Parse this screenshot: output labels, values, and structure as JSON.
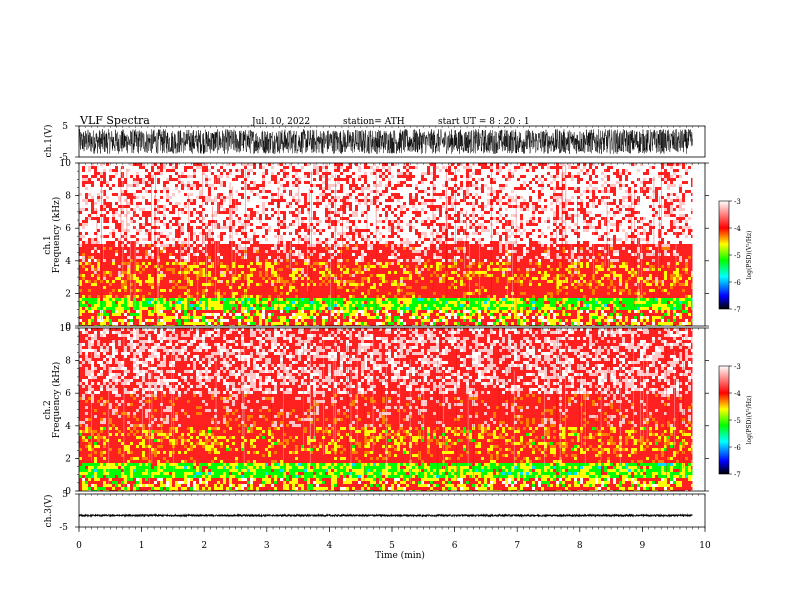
{
  "header": {
    "title": "VLF  Spectra",
    "date": "Jul.  10,  2022",
    "station": "station= ATH",
    "start": "start  UT  =    8  : 20 : 1"
  },
  "chart_data": [
    {
      "type": "line",
      "panel": "ch1-waveform",
      "ylabel": "ch.1(V)",
      "yticks": [
        "5",
        "-5"
      ],
      "ylim": [
        -5,
        5
      ],
      "xlim": [
        0,
        10
      ],
      "data_end_min": 9.8,
      "signal": "dense VLF waveform filling roughly -4 to +4 V over the whole record"
    },
    {
      "type": "heatmap",
      "panel": "ch1-spectrogram",
      "ylabel": "ch.1",
      "ylabel2": "Frequency  (kHz)",
      "yticks": [
        "10",
        "8",
        "6",
        "4",
        "2",
        "0"
      ],
      "ylim": [
        0,
        10
      ],
      "xlim": [
        0,
        10
      ],
      "data_end_min": 9.8,
      "bands": [
        {
          "fmin": 5.0,
          "fmax": 10.0,
          "level": "low (white/pink, log PSD about -3.5)"
        },
        {
          "fmin": 3.9,
          "fmax": 5.0,
          "level": "moderate (red, about -4)"
        },
        {
          "fmin": 2.4,
          "fmax": 3.9,
          "level": "high (red with yellow bursts, about -4.3)"
        },
        {
          "fmin": 1.8,
          "fmax": 2.4,
          "level": "moderate (red)"
        },
        {
          "fmin": 1.0,
          "fmax": 1.8,
          "level": "strong (green/yellow, about -5)"
        },
        {
          "fmin": 0.0,
          "fmax": 1.0,
          "level": "mixed (red/yellow with white lines)"
        }
      ]
    },
    {
      "type": "heatmap",
      "panel": "ch2-spectrogram",
      "ylabel": "ch.2",
      "ylabel2": "Frequency  (kHz)",
      "yticks": [
        "10",
        "8",
        "6",
        "4",
        "2",
        "0"
      ],
      "ylim": [
        0,
        10
      ],
      "xlim": [
        0,
        10
      ],
      "data_end_min": 9.8,
      "bands": [
        {
          "fmin": 6.0,
          "fmax": 10.0,
          "level": "low (pink/red mottled)"
        },
        {
          "fmin": 3.9,
          "fmax": 6.0,
          "level": "moderate (red)"
        },
        {
          "fmin": 2.2,
          "fmax": 3.9,
          "level": "high (red with yellow bursts)"
        },
        {
          "fmin": 1.8,
          "fmax": 2.2,
          "level": "moderate (red)"
        },
        {
          "fmin": 0.8,
          "fmax": 1.8,
          "level": "strong (green/yellow)"
        },
        {
          "fmin": 0.0,
          "fmax": 0.8,
          "level": "mixed (red/yellow)"
        }
      ]
    },
    {
      "type": "line",
      "panel": "ch3-waveform",
      "ylabel": "ch.3(V)",
      "yticks": [
        "5",
        "-5"
      ],
      "ylim": [
        -5,
        5
      ],
      "xlim": [
        0,
        10
      ],
      "data_end_min": 9.8,
      "signal": "nearly flat trace around -1.5 V"
    }
  ],
  "xaxis": {
    "label": "Time  (min)",
    "ticks": [
      "0",
      "1",
      "2",
      "3",
      "4",
      "5",
      "6",
      "7",
      "8",
      "9",
      "10"
    ]
  },
  "colorbar": {
    "label": "log(PSD)(V²/Hz)",
    "ticks": [
      "-3",
      "-4",
      "-5",
      "-6",
      "-7"
    ],
    "range": [
      -7,
      -3
    ],
    "stops": [
      "#000000",
      "#0000ff",
      "#00ffff",
      "#00ff00",
      "#ffff00",
      "#ff0000",
      "#ffffff"
    ]
  }
}
